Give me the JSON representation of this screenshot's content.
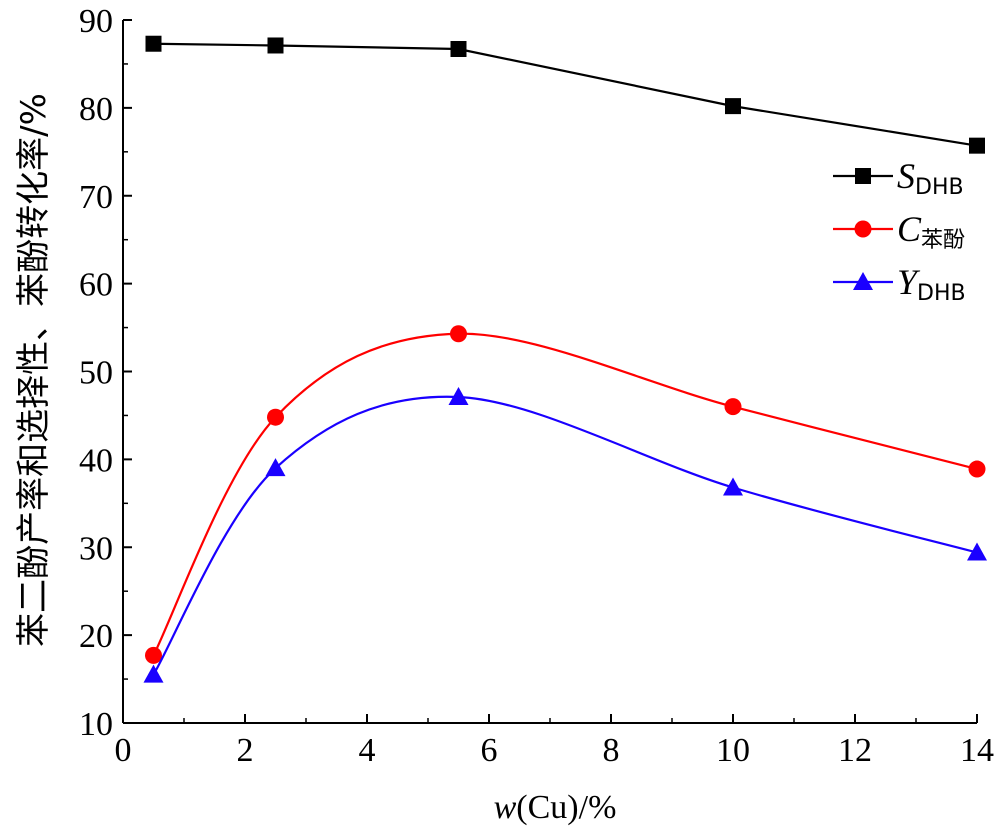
{
  "chart_data": {
    "type": "line",
    "xlabel_italic": "w",
    "xlabel_rest": "(Cu)/%",
    "ylabel": "苯二酚产率和选择性、苯酚转化率/%",
    "xlim": [
      0,
      14
    ],
    "ylim": [
      10,
      90
    ],
    "xticks": [
      0,
      2,
      4,
      6,
      8,
      10,
      12,
      14
    ],
    "yticks": [
      10,
      20,
      30,
      40,
      50,
      60,
      70,
      80,
      90
    ],
    "grid": false,
    "legend_position": "right",
    "series": [
      {
        "name_main": "S",
        "name_sub": "DHB",
        "marker": "square",
        "color": "#000000",
        "smooth": false,
        "x": [
          0.5,
          2.5,
          5.5,
          10,
          14
        ],
        "values": [
          87.3,
          87.1,
          86.7,
          80.2,
          75.7
        ]
      },
      {
        "name_main": "C",
        "name_sub": "苯酚",
        "marker": "circle",
        "color": "#ff0000",
        "smooth": true,
        "x": [
          0.5,
          2.5,
          5.5,
          10,
          14
        ],
        "values": [
          17.7,
          44.8,
          54.3,
          46.0,
          38.9
        ]
      },
      {
        "name_main": "Y",
        "name_sub": "DHB",
        "marker": "triangle",
        "color": "#1a00ff",
        "smooth": true,
        "x": [
          0.5,
          2.5,
          5.5,
          10,
          14
        ],
        "values": [
          15.5,
          39.0,
          47.1,
          36.8,
          29.4
        ]
      }
    ]
  }
}
